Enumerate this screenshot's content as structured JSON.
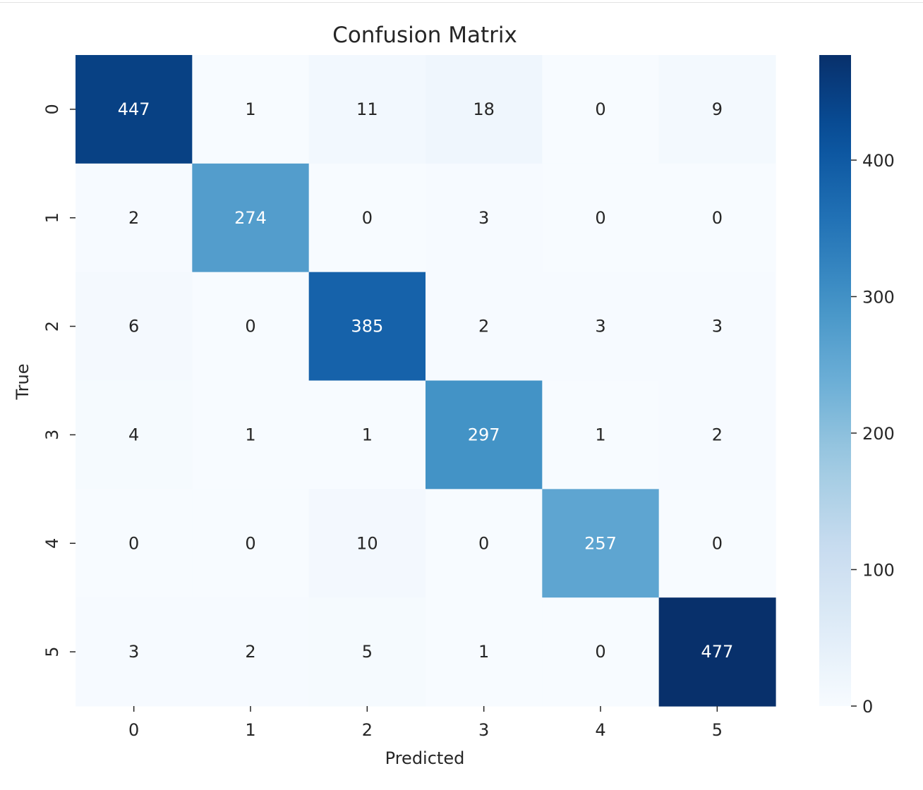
{
  "chart_data": {
    "type": "heatmap",
    "title": "Confusion Matrix",
    "xlabel": "Predicted",
    "ylabel": "True",
    "x_categories": [
      "0",
      "1",
      "2",
      "3",
      "4",
      "5"
    ],
    "y_categories": [
      "0",
      "1",
      "2",
      "3",
      "4",
      "5"
    ],
    "matrix": [
      [
        447,
        1,
        11,
        18,
        0,
        9
      ],
      [
        2,
        274,
        0,
        3,
        0,
        0
      ],
      [
        6,
        0,
        385,
        2,
        3,
        3
      ],
      [
        4,
        1,
        1,
        297,
        1,
        2
      ],
      [
        0,
        0,
        10,
        0,
        257,
        0
      ],
      [
        3,
        2,
        5,
        1,
        0,
        477
      ]
    ],
    "colormap": "Blues",
    "value_range": [
      0,
      477
    ],
    "colorbar_ticks": [
      0,
      100,
      200,
      300,
      400
    ],
    "colorbar_tick_labels": [
      "0",
      "100",
      "200",
      "300",
      "400"
    ],
    "annotations": "cell values",
    "legend": "colorbar on right"
  },
  "colors": {
    "text": "#262626",
    "annotation_light": "#ffffff",
    "annotation_dark": "#262626"
  }
}
